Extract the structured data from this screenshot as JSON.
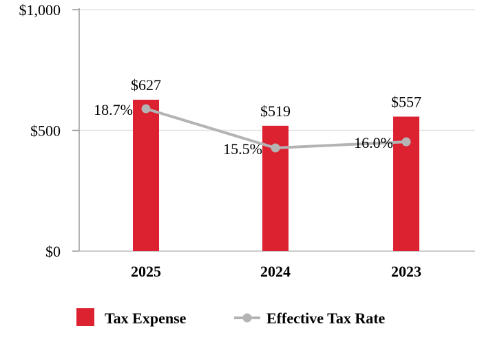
{
  "chart_data": {
    "type": "bar",
    "categories": [
      "2025",
      "2024",
      "2023"
    ],
    "series": [
      {
        "name": "Tax Expense",
        "kind": "bar",
        "values": [
          627,
          519,
          557
        ],
        "labels": [
          "$627",
          "$519",
          "$557"
        ],
        "color": "#DC2130"
      },
      {
        "name": "Effective Tax Rate",
        "kind": "line",
        "values": [
          18.7,
          15.5,
          16.0
        ],
        "labels": [
          "18.7%",
          "15.5%",
          "16.0%"
        ],
        "color": "#B4B4B4"
      }
    ],
    "ylim": [
      0,
      1000
    ],
    "yticks": [
      0,
      500,
      1000
    ],
    "ytick_labels": [
      "$0",
      "$500",
      "$1,000"
    ],
    "grid": true,
    "legend": "bottom"
  }
}
